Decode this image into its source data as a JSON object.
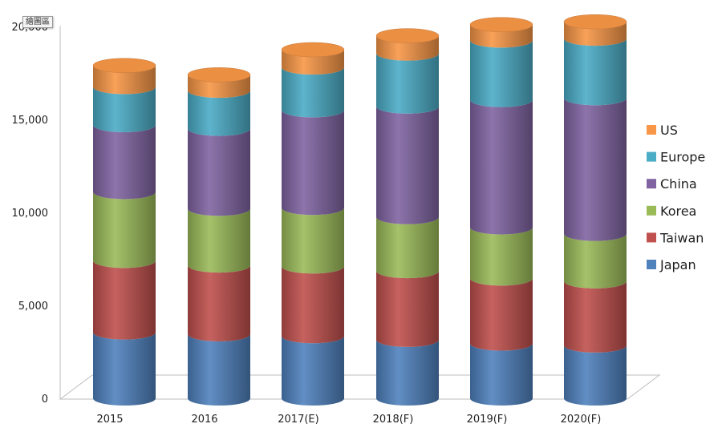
{
  "plot_area_tag": "繪圖區",
  "chart_data": {
    "type": "bar",
    "stacked": true,
    "style": "3d-cylinder",
    "categories": [
      "2015",
      "2016",
      "2017(E)",
      "2018(F)",
      "2019(F)",
      "2020(F)"
    ],
    "series": [
      {
        "name": "Japan",
        "color": "#4f81bd",
        "values": [
          3550,
          3450,
          3350,
          3150,
          2950,
          2850
        ]
      },
      {
        "name": "Taiwan",
        "color": "#c0504d",
        "values": [
          3850,
          3700,
          3750,
          3700,
          3500,
          3450
        ]
      },
      {
        "name": "Korea",
        "color": "#9bbb59",
        "values": [
          3700,
          3050,
          3150,
          2900,
          2750,
          2550
        ]
      },
      {
        "name": "China",
        "color": "#8064a2",
        "values": [
          3600,
          4300,
          5250,
          5950,
          6850,
          7300
        ]
      },
      {
        "name": "Europe",
        "color": "#4bacc6",
        "values": [
          2050,
          2050,
          2300,
          2850,
          3200,
          3200
        ]
      },
      {
        "name": "US",
        "color": "#f79646",
        "values": [
          1150,
          850,
          950,
          950,
          850,
          900
        ]
      }
    ],
    "y_ticks": [
      "0",
      "5,000",
      "10,000",
      "15,000",
      "20,000"
    ],
    "ylim": [
      0,
      20000
    ],
    "xlabel": "",
    "ylabel": "",
    "legend": {
      "placement": "right",
      "order": [
        "US",
        "Europe",
        "China",
        "Korea",
        "Taiwan",
        "Japan"
      ]
    },
    "grid": false
  }
}
